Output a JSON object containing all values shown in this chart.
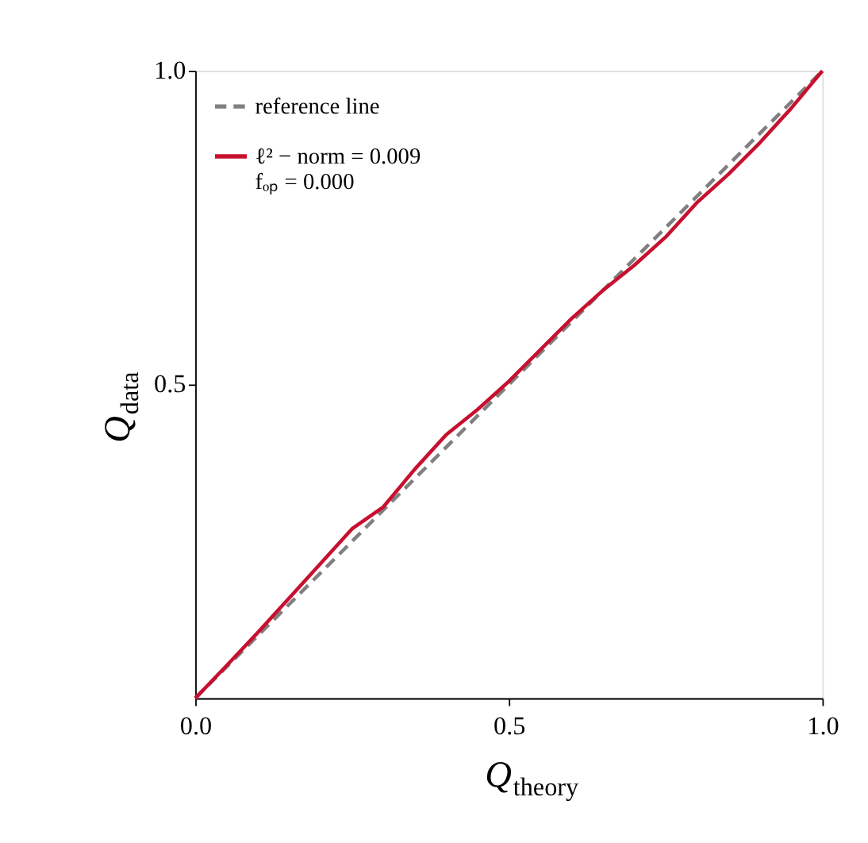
{
  "chart_data": {
    "type": "line",
    "xlabel": "Q$_{theory}$",
    "ylabel": "Q$_{data}$",
    "series": [
      {
        "name": "reference   line",
        "color": "#808080",
        "line_style": "dashed",
        "x": [
          0,
          1
        ],
        "values": [
          0,
          1
        ]
      },
      {
        "name": "ℓ² − norm = 0.009\nfₒₚ = 0.000",
        "color": "#c8102e",
        "line_style": "solid",
        "x": [
          0,
          0.05,
          0.1,
          0.15,
          0.2,
          0.25,
          0.3,
          0.35,
          0.4,
          0.45,
          0.5,
          0.55,
          0.6,
          0.65,
          0.7,
          0.75,
          0.8,
          0.85,
          0.9,
          0.95,
          1.0
        ],
        "values": [
          0,
          0.052,
          0.105,
          0.16,
          0.215,
          0.27,
          0.305,
          0.365,
          0.42,
          0.46,
          0.505,
          0.555,
          0.605,
          0.65,
          0.69,
          0.735,
          0.79,
          0.835,
          0.885,
          0.94,
          1.0
        ]
      }
    ],
    "xlim": [
      0,
      1
    ],
    "ylim": [
      0,
      1
    ],
    "xticks": [
      {
        "value": 0,
        "label": "0.0"
      },
      {
        "value": 0.5,
        "label": "0.5"
      },
      {
        "value": 1,
        "label": "1.0"
      }
    ],
    "yticks": [
      {
        "value": 0.5,
        "label": "0.5"
      },
      {
        "value": 1,
        "label": "1.0"
      }
    ],
    "grid": false,
    "legend": "top left",
    "marker": "none"
  }
}
